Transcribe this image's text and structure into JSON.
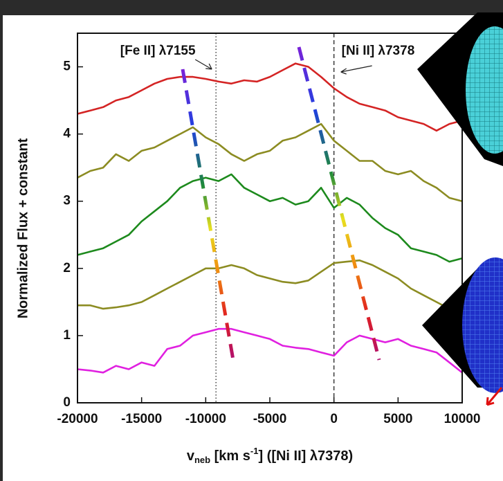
{
  "chart_data": {
    "type": "line",
    "ylabel": "Normalized Flux + constant",
    "xlabel_parts": [
      "v",
      "neb",
      " [km s",
      "-1",
      "] ([Ni II] λ7378)"
    ],
    "annotations": [
      {
        "text": "[Fe II] λ7155",
        "x": -9200,
        "style": "dotted"
      },
      {
        "text": "[Ni II] λ7378",
        "x": 0,
        "style": "dashed"
      }
    ],
    "x": [
      -20000,
      -19000,
      -18000,
      -17000,
      -16000,
      -15000,
      -14000,
      -13000,
      -12000,
      -11000,
      -10000,
      -9000,
      -8000,
      -7000,
      -6000,
      -5000,
      -4000,
      -3000,
      -2000,
      -1000,
      0,
      1000,
      2000,
      3000,
      4000,
      5000,
      6000,
      7000,
      8000,
      9000,
      10000
    ],
    "series": [
      {
        "color": "#d42424",
        "values": [
          4.3,
          4.35,
          4.4,
          4.5,
          4.55,
          4.65,
          4.75,
          4.82,
          4.85,
          4.85,
          4.82,
          4.78,
          4.75,
          4.8,
          4.78,
          4.85,
          4.95,
          5.05,
          5.0,
          4.85,
          4.68,
          4.55,
          4.45,
          4.4,
          4.35,
          4.25,
          4.2,
          4.15,
          4.05,
          4.15,
          4.2
        ]
      },
      {
        "color": "#8c8c22",
        "values": [
          3.35,
          3.45,
          3.5,
          3.7,
          3.6,
          3.75,
          3.8,
          3.9,
          4.0,
          4.1,
          3.95,
          3.85,
          3.7,
          3.6,
          3.7,
          3.75,
          3.9,
          3.95,
          4.05,
          4.15,
          3.9,
          3.75,
          3.6,
          3.6,
          3.45,
          3.4,
          3.45,
          3.3,
          3.2,
          3.05,
          3.0
        ]
      },
      {
        "color": "#1d8a1d",
        "values": [
          2.2,
          2.25,
          2.3,
          2.4,
          2.5,
          2.7,
          2.85,
          3.0,
          3.2,
          3.3,
          3.35,
          3.3,
          3.4,
          3.2,
          3.1,
          3.0,
          3.05,
          2.95,
          3.0,
          3.2,
          2.9,
          3.05,
          2.95,
          2.75,
          2.6,
          2.5,
          2.3,
          2.25,
          2.2,
          2.1,
          2.15
        ]
      },
      {
        "color": "#8c8c22",
        "values": [
          1.45,
          1.45,
          1.4,
          1.42,
          1.45,
          1.5,
          1.6,
          1.7,
          1.8,
          1.9,
          2.0,
          2.0,
          2.05,
          2.0,
          1.9,
          1.85,
          1.8,
          1.78,
          1.82,
          1.95,
          2.08,
          2.1,
          2.12,
          2.05,
          1.95,
          1.85,
          1.7,
          1.6,
          1.5,
          1.4,
          1.3
        ]
      },
      {
        "color": "#e020e0",
        "values": [
          0.5,
          0.48,
          0.45,
          0.55,
          0.5,
          0.6,
          0.55,
          0.8,
          0.85,
          1.0,
          1.05,
          1.1,
          1.1,
          1.05,
          1.0,
          0.95,
          0.85,
          0.82,
          0.8,
          0.75,
          0.7,
          0.9,
          1.0,
          0.95,
          0.9,
          0.95,
          0.85,
          0.8,
          0.75,
          0.6,
          0.45
        ]
      }
    ],
    "xlim": [
      -20000,
      10000
    ],
    "xticks": [
      -20000,
      -15000,
      -10000,
      -5000,
      0,
      5000,
      10000
    ],
    "ylim": [
      0,
      5.5
    ],
    "yticks": [
      0,
      1,
      2,
      3,
      4,
      5
    ]
  }
}
